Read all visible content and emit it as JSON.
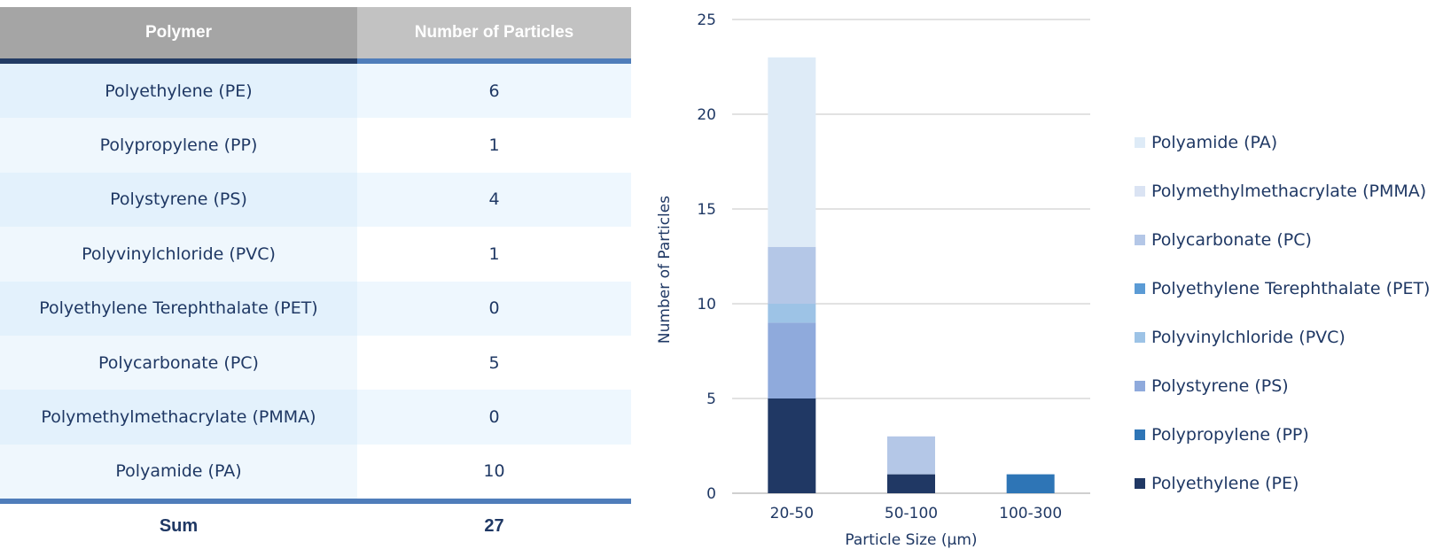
{
  "table": {
    "headers": [
      "Polymer",
      "Number of Particles"
    ],
    "rows": [
      {
        "polymer": "Polyethylene (PE)",
        "count": "6"
      },
      {
        "polymer": "Polypropylene (PP)",
        "count": "1"
      },
      {
        "polymer": "Polystyrene (PS)",
        "count": "4"
      },
      {
        "polymer": "Polyvinylchloride (PVC)",
        "count": "1"
      },
      {
        "polymer": "Polyethylene Terephthalate (PET)",
        "count": "0"
      },
      {
        "polymer": "Polycarbonate (PC)",
        "count": "5"
      },
      {
        "polymer": "Polymethylmethacrylate (PMMA)",
        "count": "0"
      },
      {
        "polymer": "Polyamide (PA)",
        "count": "10"
      }
    ],
    "footer": {
      "label": "Sum",
      "value": "27"
    }
  },
  "chart_data": {
    "type": "bar",
    "stacked": true,
    "categories": [
      "20-50",
      "50-100",
      "100-300"
    ],
    "xlabel": "Particle Size (µm)",
    "ylabel": "Number of Particles",
    "ylim": [
      0,
      25
    ],
    "yticks": [
      0,
      5,
      10,
      15,
      20,
      25
    ],
    "grid": true,
    "legend_position": "right",
    "series": [
      {
        "name": "Polyethylene (PE)",
        "color": "#203864",
        "values": [
          5,
          1,
          0
        ]
      },
      {
        "name": "Polypropylene (PP)",
        "color": "#2e75b6",
        "values": [
          0,
          0,
          1
        ]
      },
      {
        "name": "Polystyrene (PS)",
        "color": "#8faadc",
        "values": [
          4,
          0,
          0
        ]
      },
      {
        "name": "Polyvinylchloride (PVC)",
        "color": "#9dc3e6",
        "values": [
          1,
          0,
          0
        ]
      },
      {
        "name": "Polyethylene Terephthalate (PET)",
        "color": "#5b9bd5",
        "values": [
          0,
          0,
          0
        ]
      },
      {
        "name": "Polycarbonate (PC)",
        "color": "#b4c7e7",
        "values": [
          3,
          2,
          0
        ]
      },
      {
        "name": "Polymethylmethacrylate (PMMA)",
        "color": "#dae3f3",
        "values": [
          0,
          0,
          0
        ]
      },
      {
        "name": "Polyamide (PA)",
        "color": "#deebf7",
        "values": [
          10,
          0,
          0
        ]
      }
    ]
  }
}
